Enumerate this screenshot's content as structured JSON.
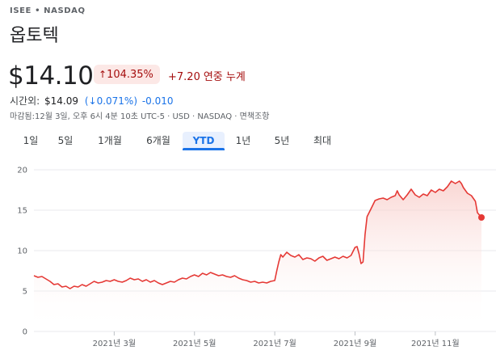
{
  "header": {
    "ticker": "ISEE • NASDAQ",
    "company": "옵토텍"
  },
  "quote": {
    "price": "$14.10",
    "change_pct_arrow": "↑",
    "change_pct": "104.35%",
    "change_abs": "+7.20",
    "change_period": "연중 누계"
  },
  "after_hours": {
    "label": "시간외:",
    "price": "$14.09",
    "pct": "(↓0.071%)",
    "abs": "-0.010"
  },
  "meta": "마감됨:12월 3일, 오후 6시 4분 10초 UTC-5 · USD · NASDAQ · 면책조항",
  "tabs": [
    {
      "label": "1일"
    },
    {
      "label": "5일"
    },
    {
      "label": "1개월"
    },
    {
      "label": "6개월"
    },
    {
      "label": "YTD"
    },
    {
      "label": "1년"
    },
    {
      "label": "5년"
    },
    {
      "label": "최대"
    }
  ],
  "active_tab": "YTD",
  "colors": {
    "line": "#e53935",
    "fill_top": "#f8c9c5",
    "negative": "#a50e0e",
    "accent": "#1a73e8"
  },
  "chart_data": {
    "type": "area",
    "x_range": [
      0,
      11.15
    ],
    "ylim": [
      0,
      20
    ],
    "y_ticks": [
      0,
      5,
      10,
      15,
      20
    ],
    "x_ticks": [
      {
        "label": "2021년 3월",
        "month": 2
      },
      {
        "label": "2021년 5월",
        "month": 4
      },
      {
        "label": "2021년 7월",
        "month": 6
      },
      {
        "label": "2021년 9월",
        "month": 8
      },
      {
        "label": "2021년 11월",
        "month": 10
      }
    ],
    "grid": true,
    "points": [
      [
        0.0,
        6.9
      ],
      [
        0.1,
        6.7
      ],
      [
        0.2,
        6.8
      ],
      [
        0.3,
        6.5
      ],
      [
        0.4,
        6.2
      ],
      [
        0.5,
        5.8
      ],
      [
        0.6,
        5.9
      ],
      [
        0.7,
        5.5
      ],
      [
        0.8,
        5.6
      ],
      [
        0.9,
        5.3
      ],
      [
        1.0,
        5.6
      ],
      [
        1.1,
        5.5
      ],
      [
        1.2,
        5.8
      ],
      [
        1.3,
        5.6
      ],
      [
        1.4,
        5.9
      ],
      [
        1.5,
        6.2
      ],
      [
        1.6,
        6.0
      ],
      [
        1.7,
        6.1
      ],
      [
        1.8,
        6.3
      ],
      [
        1.9,
        6.2
      ],
      [
        2.0,
        6.4
      ],
      [
        2.1,
        6.2
      ],
      [
        2.2,
        6.1
      ],
      [
        2.3,
        6.3
      ],
      [
        2.4,
        6.6
      ],
      [
        2.5,
        6.4
      ],
      [
        2.6,
        6.5
      ],
      [
        2.7,
        6.2
      ],
      [
        2.8,
        6.4
      ],
      [
        2.9,
        6.1
      ],
      [
        3.0,
        6.3
      ],
      [
        3.1,
        6.0
      ],
      [
        3.2,
        5.8
      ],
      [
        3.3,
        6.0
      ],
      [
        3.4,
        6.2
      ],
      [
        3.5,
        6.1
      ],
      [
        3.6,
        6.4
      ],
      [
        3.7,
        6.6
      ],
      [
        3.8,
        6.5
      ],
      [
        3.9,
        6.8
      ],
      [
        4.0,
        7.0
      ],
      [
        4.1,
        6.8
      ],
      [
        4.2,
        7.2
      ],
      [
        4.3,
        7.0
      ],
      [
        4.4,
        7.3
      ],
      [
        4.5,
        7.1
      ],
      [
        4.6,
        6.9
      ],
      [
        4.7,
        7.0
      ],
      [
        4.8,
        6.8
      ],
      [
        4.9,
        6.7
      ],
      [
        5.0,
        6.9
      ],
      [
        5.1,
        6.6
      ],
      [
        5.2,
        6.4
      ],
      [
        5.3,
        6.3
      ],
      [
        5.4,
        6.1
      ],
      [
        5.5,
        6.2
      ],
      [
        5.6,
        6.0
      ],
      [
        5.7,
        6.1
      ],
      [
        5.8,
        6.0
      ],
      [
        5.9,
        6.2
      ],
      [
        6.0,
        6.3
      ],
      [
        6.05,
        7.5
      ],
      [
        6.1,
        8.6
      ],
      [
        6.15,
        9.5
      ],
      [
        6.2,
        9.2
      ],
      [
        6.3,
        9.8
      ],
      [
        6.4,
        9.4
      ],
      [
        6.5,
        9.2
      ],
      [
        6.6,
        9.5
      ],
      [
        6.7,
        8.9
      ],
      [
        6.8,
        9.1
      ],
      [
        6.9,
        9.0
      ],
      [
        7.0,
        8.7
      ],
      [
        7.1,
        9.1
      ],
      [
        7.2,
        9.3
      ],
      [
        7.3,
        8.8
      ],
      [
        7.4,
        9.0
      ],
      [
        7.5,
        9.2
      ],
      [
        7.6,
        9.0
      ],
      [
        7.7,
        9.3
      ],
      [
        7.8,
        9.1
      ],
      [
        7.9,
        9.4
      ],
      [
        8.0,
        10.4
      ],
      [
        8.05,
        10.5
      ],
      [
        8.1,
        9.6
      ],
      [
        8.15,
        8.4
      ],
      [
        8.2,
        8.6
      ],
      [
        8.25,
        12.0
      ],
      [
        8.3,
        14.2
      ],
      [
        8.4,
        15.2
      ],
      [
        8.5,
        16.2
      ],
      [
        8.6,
        16.4
      ],
      [
        8.7,
        16.5
      ],
      [
        8.8,
        16.3
      ],
      [
        8.9,
        16.6
      ],
      [
        9.0,
        16.8
      ],
      [
        9.05,
        17.4
      ],
      [
        9.1,
        16.9
      ],
      [
        9.2,
        16.3
      ],
      [
        9.3,
        16.9
      ],
      [
        9.4,
        17.6
      ],
      [
        9.5,
        16.9
      ],
      [
        9.6,
        16.6
      ],
      [
        9.7,
        17.0
      ],
      [
        9.8,
        16.8
      ],
      [
        9.9,
        17.5
      ],
      [
        10.0,
        17.2
      ],
      [
        10.1,
        17.6
      ],
      [
        10.2,
        17.4
      ],
      [
        10.3,
        17.9
      ],
      [
        10.4,
        18.6
      ],
      [
        10.5,
        18.3
      ],
      [
        10.6,
        18.6
      ],
      [
        10.65,
        18.3
      ],
      [
        10.7,
        17.8
      ],
      [
        10.8,
        17.1
      ],
      [
        10.9,
        16.8
      ],
      [
        11.0,
        16.1
      ],
      [
        11.05,
        14.7
      ],
      [
        11.1,
        14.4
      ],
      [
        11.15,
        14.1
      ]
    ]
  }
}
